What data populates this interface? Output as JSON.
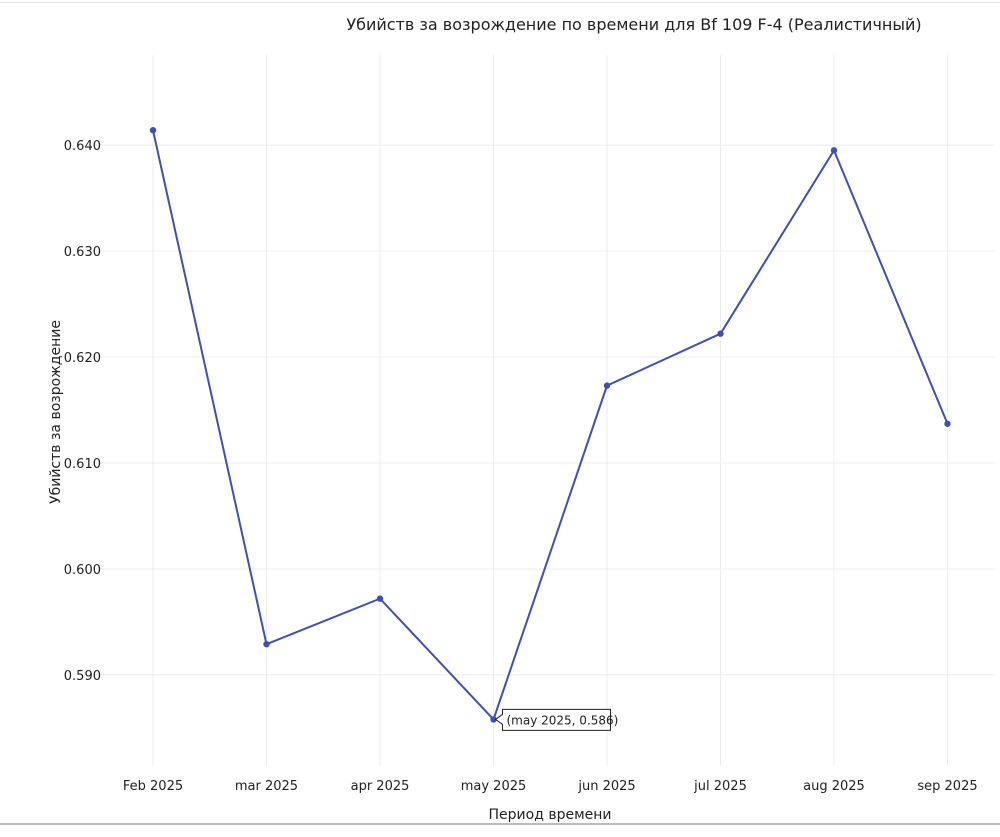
{
  "chart_data": {
    "type": "line",
    "title": "Убийств за возрождение по времени для Bf 109 F-4 (Реалистичный)",
    "xlabel": "Период времени",
    "ylabel": "Убийств за возрождение",
    "categories": [
      "Feb 2025",
      "mar 2025",
      "apr 2025",
      "may 2025",
      "jun 2025",
      "jul 2025",
      "aug 2025",
      "sep 2025"
    ],
    "series": [
      {
        "values": [
          0.6414,
          0.5929,
          0.5972,
          0.5858,
          0.6173,
          0.6222,
          0.6395,
          0.6137
        ]
      }
    ],
    "y_ticks": [
      "0.590",
      "0.600",
      "0.610",
      "0.620",
      "0.630",
      "0.640"
    ],
    "ylim": [
      0.5815,
      0.6485
    ],
    "grid": true,
    "legend": "none",
    "line_color": "#3f4fb5",
    "tooltip": {
      "category": "may 2025",
      "text": "(may 2025, 0.586)"
    }
  }
}
